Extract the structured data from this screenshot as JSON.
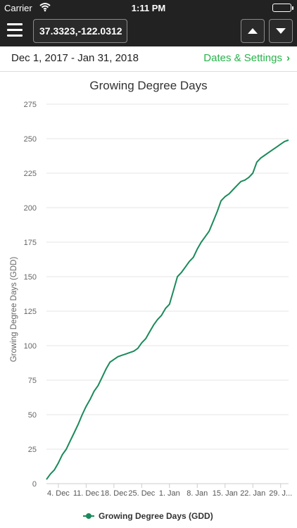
{
  "status_bar": {
    "carrier": "Carrier",
    "time": "1:11 PM",
    "icons": [
      "wifi-icon",
      "battery-icon"
    ]
  },
  "nav": {
    "coordinates": "37.3323,-122.0312",
    "icons": [
      "menu-icon",
      "arrow-up-icon",
      "arrow-down-icon"
    ]
  },
  "date_bar": {
    "range": "Dec 1, 2017 - Jan 31, 2018",
    "settings_label": "Dates & Settings",
    "icon": "chevron-right-icon"
  },
  "colors": {
    "accent": "#28b34b",
    "series": "#1a8a5a",
    "bar_bg": "#222222"
  },
  "chart_data": {
    "type": "line",
    "title": "Growing Degree Days",
    "ylabel": "Growing Degree Days (GDD)",
    "xlabel": "",
    "ylim": [
      0,
      275
    ],
    "yticks": [
      0,
      25,
      50,
      75,
      100,
      125,
      150,
      175,
      200,
      225,
      250,
      275
    ],
    "xlim": [
      1,
      62
    ],
    "xticks": [
      {
        "x": 4,
        "label": "4. Dec"
      },
      {
        "x": 11,
        "label": "11. Dec"
      },
      {
        "x": 18,
        "label": "18. Dec"
      },
      {
        "x": 25,
        "label": "25. Dec"
      },
      {
        "x": 32,
        "label": "1. Jan"
      },
      {
        "x": 39,
        "label": "8. Jan"
      },
      {
        "x": 46,
        "label": "15. Jan"
      },
      {
        "x": 53,
        "label": "22. Jan"
      },
      {
        "x": 60,
        "label": "29. J..."
      }
    ],
    "grid": true,
    "legend_position": "bottom",
    "series": [
      {
        "name": "Growing Degree Days (GDD)",
        "x": [
          1,
          2,
          3,
          4,
          5,
          6,
          7,
          8,
          9,
          10,
          11,
          12,
          13,
          14,
          15,
          16,
          17,
          18,
          19,
          20,
          21,
          22,
          23,
          24,
          25,
          26,
          27,
          28,
          29,
          30,
          31,
          32,
          33,
          34,
          35,
          36,
          37,
          38,
          39,
          40,
          41,
          42,
          43,
          44,
          45,
          46,
          47,
          48,
          49,
          50,
          51,
          52,
          53,
          54,
          55,
          56,
          57,
          58,
          59,
          60,
          61,
          62
        ],
        "values": [
          3,
          7,
          10,
          15,
          21,
          25,
          31,
          37,
          43,
          50,
          56,
          61,
          67,
          71,
          77,
          83,
          88,
          90,
          92,
          93,
          94,
          95,
          96,
          98,
          102,
          105,
          110,
          115,
          119,
          122,
          127,
          130,
          140,
          150,
          153,
          157,
          161,
          164,
          170,
          175,
          179,
          183,
          190,
          197,
          205,
          208,
          210,
          213,
          216,
          219,
          220,
          222,
          225,
          233,
          236,
          238,
          240,
          242,
          244,
          246,
          248,
          249
        ]
      }
    ]
  }
}
